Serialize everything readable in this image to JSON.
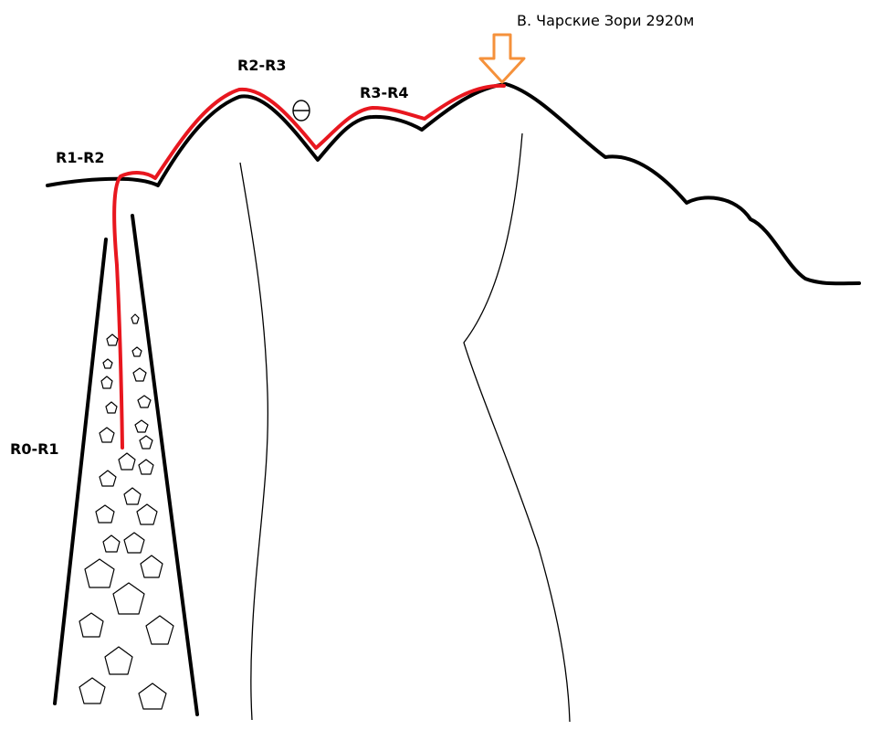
{
  "summit": {
    "label": "В. Чарские Зори 2920м"
  },
  "sections": [
    {
      "id": "r0-r1",
      "label": "R0-R1"
    },
    {
      "id": "r1-r2",
      "label": "R1-R2"
    },
    {
      "id": "r2-r3",
      "label": "R2-R3"
    },
    {
      "id": "r3-r4",
      "label": "R3-R4"
    }
  ],
  "colors": {
    "ridge": "#000000",
    "route": "#e8171f",
    "summit_arrow": "#f5913b"
  },
  "icons": {
    "summit_marker": "down-arrow-icon",
    "rock_hazard": "circle-minus-icon"
  }
}
